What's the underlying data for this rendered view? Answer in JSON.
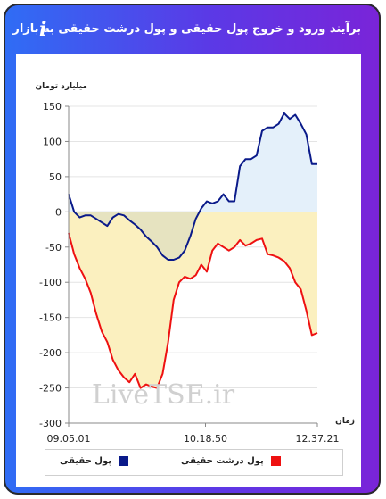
{
  "header": {
    "title": "برآیند ورود و خروج پول حقیقی و پول درشت حقیقی به بازار",
    "info_symbol": "i"
  },
  "colors": {
    "header_gradient": [
      "#2f6df5",
      "#7a24d8"
    ],
    "real_money": "#0a1a8a",
    "big_real_money": "#ee1111",
    "real_fill_positive": "#e4f0fa",
    "big_fill_negative": "#fbf0bf",
    "overlap_fill": "#e6e3c0"
  },
  "chart_data": {
    "type": "line",
    "ylabel": "میلیارد تومان",
    "xlabel": "زمان",
    "ylim": [
      -300,
      150
    ],
    "yticks": [
      150,
      100,
      50,
      0,
      -50,
      -100,
      -150,
      -200,
      -250,
      -300
    ],
    "xticks": [
      "09.05.01",
      "10.18.50",
      "12.37.21"
    ],
    "watermark": "LiveTSE.ir",
    "series": [
      {
        "name": "پول حقیقی",
        "color": "#0a1a8a",
        "values": [
          25,
          0,
          -8,
          -5,
          -5,
          -10,
          -15,
          -20,
          -8,
          -3,
          -5,
          -12,
          -18,
          -25,
          -35,
          -42,
          -50,
          -62,
          -68,
          -68,
          -65,
          -55,
          -35,
          -10,
          5,
          15,
          12,
          15,
          25,
          15,
          15,
          65,
          75,
          75,
          80,
          115,
          120,
          120,
          125,
          140,
          132,
          138,
          125,
          110,
          68,
          68
        ]
      },
      {
        "name": "پول درشت حقیقی",
        "color": "#ee1111",
        "values": [
          -30,
          -60,
          -80,
          -95,
          -115,
          -145,
          -170,
          -185,
          -210,
          -225,
          -235,
          -242,
          -230,
          -250,
          -245,
          -248,
          -250,
          -230,
          -185,
          -125,
          -100,
          -92,
          -95,
          -90,
          -75,
          -85,
          -55,
          -45,
          -50,
          -55,
          -50,
          -40,
          -48,
          -45,
          -40,
          -38,
          -60,
          -62,
          -65,
          -70,
          -80,
          -100,
          -110,
          -140,
          -175,
          -172
        ]
      }
    ]
  }
}
